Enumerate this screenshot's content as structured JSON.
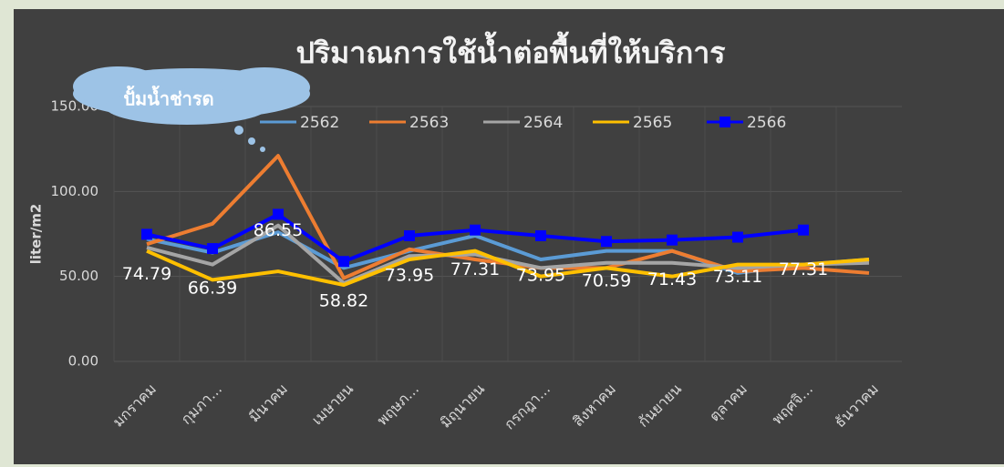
{
  "chart_data": {
    "type": "line",
    "title": "ปริมาณการใช้น้ำต่อพื้นที่ให้บริการ",
    "annotation": "ปั้มน้ำช่ารด",
    "y_label": "liter/m2",
    "categories": [
      "มกราคม",
      "กุมภา...",
      "มีนาคม",
      "เมษายน",
      "พฤษภ...",
      "มิถุนายน",
      "กรกฎา...",
      "สิงหาคม",
      "กันยายน",
      "ตุลาคม",
      "พฤศจิ...",
      "ธันวาคม"
    ],
    "series": [
      {
        "name": "2562",
        "color": "#5b9bd5",
        "values": [
          72,
          64,
          76,
          55,
          65,
          74,
          60,
          65,
          65,
          52,
          57,
          60
        ]
      },
      {
        "name": "2563",
        "color": "#ed7d31",
        "values": [
          69,
          81,
          121,
          49,
          66,
          60,
          55,
          55,
          65,
          53,
          55,
          52
        ]
      },
      {
        "name": "2564",
        "color": "#a5a5a5",
        "values": [
          67,
          57,
          80,
          46,
          62,
          63,
          55,
          58,
          58,
          55,
          57,
          58
        ]
      },
      {
        "name": "2565",
        "color": "#ffc000",
        "values": [
          65,
          48,
          53,
          45,
          60,
          65,
          50,
          55,
          50,
          57,
          57,
          60
        ]
      },
      {
        "name": "2566",
        "color": "#0000ff",
        "marker": "square",
        "show_labels": true,
        "values": [
          74.79,
          66.39,
          86.55,
          58.82,
          73.95,
          77.31,
          73.95,
          70.59,
          71.43,
          73.11,
          77.31,
          null
        ]
      }
    ],
    "ylim": [
      0,
      150
    ],
    "yticks": [
      {
        "value": 0,
        "label": "0.00"
      },
      {
        "value": 50,
        "label": "50.00"
      },
      {
        "value": 100,
        "label": "100.00"
      },
      {
        "value": 150,
        "label": "150.00"
      }
    ],
    "grid": true,
    "legend": "top"
  }
}
